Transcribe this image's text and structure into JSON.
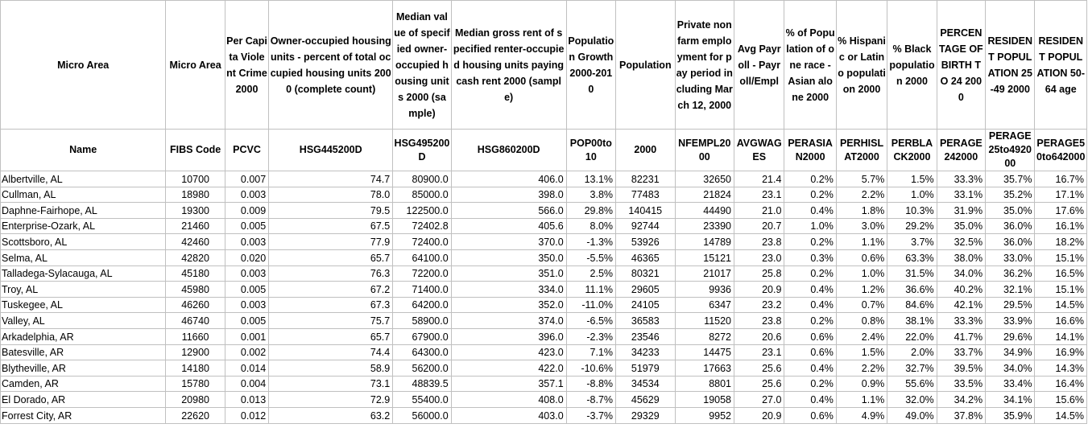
{
  "headers": [
    "Micro Area",
    "Micro Area",
    "Per Capita Violent Crime 2000",
    "Owner-occupied housing units - percent of total occupied housing units 2000 (complete count)",
    "Median value of specified owner-occupied housing units 2000 (sample)",
    "Median gross rent of specified renter-occupied housing units paying cash rent 2000 (sample)",
    "Population Growth 2000-2010",
    "Population",
    "Private nonfarm employment for pay period including March 12, 2000",
    "Avg Payroll - Payroll/Empl",
    "% of Population of one race - Asian alone 2000",
    "% Hispanic or Latino population 2000",
    "% Black population 2000",
    "PERCENTAGE OF BIRTH TO 24 2000",
    "RESIDENT POPULATION 25-49 2000",
    "RESIDENT POPULATION 50-64 age"
  ],
  "codes": [
    "Name",
    "FIBS Code",
    "PCVC",
    "HSG445200D",
    "HSG495200D",
    "HSG860200D",
    "POP00to10",
    "2000",
    "NFEMPL2000",
    "AVGWAGES",
    "PERASIAN2000",
    "PERHISLAT2000",
    "PERBLACK2000",
    "PERAGE242000",
    "PERAGE25to492000",
    "PERAGE50to642000"
  ],
  "rows": [
    [
      "Albertville, AL",
      "10700",
      "0.007",
      "74.7",
      "80900.0",
      "406.0",
      "13.1%",
      "82231",
      "32650",
      "21.4",
      "0.2%",
      "5.7%",
      "1.5%",
      "33.3%",
      "35.7%",
      "16.7%"
    ],
    [
      "Cullman, AL",
      "18980",
      "0.003",
      "78.0",
      "85000.0",
      "398.0",
      "3.8%",
      "77483",
      "21824",
      "23.1",
      "0.2%",
      "2.2%",
      "1.0%",
      "33.1%",
      "35.2%",
      "17.1%"
    ],
    [
      "Daphne-Fairhope, AL",
      "19300",
      "0.009",
      "79.5",
      "122500.0",
      "566.0",
      "29.8%",
      "140415",
      "44490",
      "21.0",
      "0.4%",
      "1.8%",
      "10.3%",
      "31.9%",
      "35.0%",
      "17.6%"
    ],
    [
      "Enterprise-Ozark, AL",
      "21460",
      "0.005",
      "67.5",
      "72402.8",
      "405.6",
      "8.0%",
      "92744",
      "23390",
      "20.7",
      "1.0%",
      "3.0%",
      "29.2%",
      "35.0%",
      "36.0%",
      "16.1%"
    ],
    [
      "Scottsboro, AL",
      "42460",
      "0.003",
      "77.9",
      "72400.0",
      "370.0",
      "-1.3%",
      "53926",
      "14789",
      "23.8",
      "0.2%",
      "1.1%",
      "3.7%",
      "32.5%",
      "36.0%",
      "18.2%"
    ],
    [
      "Selma, AL",
      "42820",
      "0.020",
      "65.7",
      "64100.0",
      "350.0",
      "-5.5%",
      "46365",
      "15121",
      "23.0",
      "0.3%",
      "0.6%",
      "63.3%",
      "38.0%",
      "33.0%",
      "15.1%"
    ],
    [
      "Talladega-Sylacauga, AL",
      "45180",
      "0.003",
      "76.3",
      "72200.0",
      "351.0",
      "2.5%",
      "80321",
      "21017",
      "25.8",
      "0.2%",
      "1.0%",
      "31.5%",
      "34.0%",
      "36.2%",
      "16.5%"
    ],
    [
      "Troy, AL",
      "45980",
      "0.005",
      "67.2",
      "71400.0",
      "334.0",
      "11.1%",
      "29605",
      "9936",
      "20.9",
      "0.4%",
      "1.2%",
      "36.6%",
      "40.2%",
      "32.1%",
      "15.1%"
    ],
    [
      "Tuskegee, AL",
      "46260",
      "0.003",
      "67.3",
      "64200.0",
      "352.0",
      "-11.0%",
      "24105",
      "6347",
      "23.2",
      "0.4%",
      "0.7%",
      "84.6%",
      "42.1%",
      "29.5%",
      "14.5%"
    ],
    [
      "Valley, AL",
      "46740",
      "0.005",
      "75.7",
      "58900.0",
      "374.0",
      "-6.5%",
      "36583",
      "11520",
      "23.8",
      "0.2%",
      "0.8%",
      "38.1%",
      "33.3%",
      "33.9%",
      "16.6%"
    ],
    [
      "Arkadelphia, AR",
      "11660",
      "0.001",
      "65.7",
      "67900.0",
      "396.0",
      "-2.3%",
      "23546",
      "8272",
      "20.6",
      "0.6%",
      "2.4%",
      "22.0%",
      "41.7%",
      "29.6%",
      "14.1%"
    ],
    [
      "Batesville, AR",
      "12900",
      "0.002",
      "74.4",
      "64300.0",
      "423.0",
      "7.1%",
      "34233",
      "14475",
      "23.1",
      "0.6%",
      "1.5%",
      "2.0%",
      "33.7%",
      "34.9%",
      "16.9%"
    ],
    [
      "Blytheville, AR",
      "14180",
      "0.014",
      "58.9",
      "56200.0",
      "422.0",
      "-10.6%",
      "51979",
      "17663",
      "25.6",
      "0.4%",
      "2.2%",
      "32.7%",
      "39.5%",
      "34.0%",
      "14.3%"
    ],
    [
      "Camden, AR",
      "15780",
      "0.004",
      "73.1",
      "48839.5",
      "357.1",
      "-8.8%",
      "34534",
      "8801",
      "25.6",
      "0.2%",
      "0.9%",
      "55.6%",
      "33.5%",
      "33.4%",
      "16.4%"
    ],
    [
      "El Dorado, AR",
      "20980",
      "0.013",
      "72.9",
      "55400.0",
      "408.0",
      "-8.7%",
      "45629",
      "19058",
      "27.0",
      "0.4%",
      "1.1%",
      "32.0%",
      "34.2%",
      "34.1%",
      "15.6%"
    ],
    [
      "Forrest City, AR",
      "22620",
      "0.012",
      "63.2",
      "56000.0",
      "403.0",
      "-3.7%",
      "29329",
      "9952",
      "20.9",
      "0.6%",
      "4.9%",
      "49.0%",
      "37.8%",
      "35.9%",
      "14.5%"
    ]
  ]
}
